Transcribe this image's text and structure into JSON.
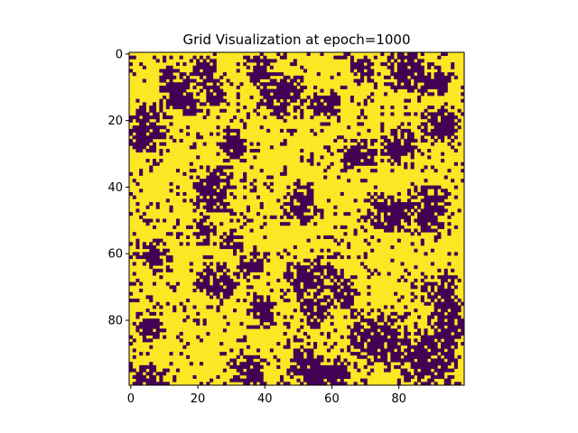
{
  "chart_data": {
    "type": "heatmap",
    "title": "Grid Visualization at epoch=1000",
    "xlabel": "",
    "ylabel": "",
    "rows": 100,
    "cols": 100,
    "xlim": [
      -0.5,
      99.5
    ],
    "ylim": [
      99.5,
      -0.5
    ],
    "x_ticks": [
      0,
      20,
      40,
      60,
      80
    ],
    "y_ticks": [
      0,
      20,
      40,
      60,
      80
    ],
    "colormap": "viridis",
    "values_domain": [
      0,
      1
    ],
    "colors": {
      "0": "#440154",
      "1": "#fde725"
    },
    "fraction_ones": 0.65,
    "dark_clusters": [
      {
        "row": 2,
        "col": 20,
        "rows": 6,
        "cols": 4
      },
      {
        "row": 4,
        "col": 10,
        "rows": 4,
        "cols": 3
      },
      {
        "row": 8,
        "col": 11,
        "rows": 9,
        "cols": 8
      },
      {
        "row": 9,
        "col": 22,
        "rows": 7,
        "cols": 5
      },
      {
        "row": 3,
        "col": 36,
        "rows": 5,
        "cols": 5
      },
      {
        "row": 8,
        "col": 40,
        "rows": 10,
        "cols": 10
      },
      {
        "row": 12,
        "col": 53,
        "rows": 6,
        "cols": 8
      },
      {
        "row": 2,
        "col": 67,
        "rows": 5,
        "cols": 4
      },
      {
        "row": 0,
        "col": 77,
        "rows": 9,
        "cols": 9
      },
      {
        "row": 5,
        "col": 87,
        "rows": 6,
        "cols": 8
      },
      {
        "row": 18,
        "col": 89,
        "rows": 7,
        "cols": 8
      },
      {
        "row": 18,
        "col": 0,
        "rows": 10,
        "cols": 9
      },
      {
        "row": 24,
        "col": 28,
        "rows": 6,
        "cols": 5
      },
      {
        "row": 27,
        "col": 64,
        "rows": 7,
        "cols": 8
      },
      {
        "row": 24,
        "col": 76,
        "rows": 8,
        "cols": 8
      },
      {
        "row": 36,
        "col": 20,
        "rows": 10,
        "cols": 9
      },
      {
        "row": 41,
        "col": 47,
        "rows": 9,
        "cols": 7
      },
      {
        "row": 44,
        "col": 72,
        "rows": 8,
        "cols": 10
      },
      {
        "row": 42,
        "col": 84,
        "rows": 10,
        "cols": 10
      },
      {
        "row": 50,
        "col": 19,
        "rows": 6,
        "cols": 5
      },
      {
        "row": 54,
        "col": 28,
        "rows": 4,
        "cols": 4
      },
      {
        "row": 58,
        "col": 4,
        "rows": 6,
        "cols": 7
      },
      {
        "row": 61,
        "col": 34,
        "rows": 5,
        "cols": 6
      },
      {
        "row": 65,
        "col": 20,
        "rows": 7,
        "cols": 11
      },
      {
        "row": 63,
        "col": 47,
        "rows": 8,
        "cols": 13
      },
      {
        "row": 69,
        "col": 60,
        "rows": 6,
        "cols": 6
      },
      {
        "row": 68,
        "col": 86,
        "rows": 6,
        "cols": 11
      },
      {
        "row": 74,
        "col": 37,
        "rows": 7,
        "cols": 5
      },
      {
        "row": 74,
        "col": 52,
        "rows": 7,
        "cols": 5
      },
      {
        "row": 76,
        "col": 90,
        "rows": 8,
        "cols": 9
      },
      {
        "row": 80,
        "col": 2,
        "rows": 5,
        "cols": 6
      },
      {
        "row": 80,
        "col": 67,
        "rows": 12,
        "cols": 14
      },
      {
        "row": 84,
        "col": 82,
        "rows": 16,
        "cols": 14
      },
      {
        "row": 88,
        "col": 49,
        "rows": 10,
        "cols": 7
      },
      {
        "row": 92,
        "col": 32,
        "rows": 8,
        "cols": 7
      },
      {
        "row": 95,
        "col": 0,
        "rows": 5,
        "cols": 10
      },
      {
        "row": 93,
        "col": 56,
        "rows": 7,
        "cols": 8
      }
    ]
  }
}
